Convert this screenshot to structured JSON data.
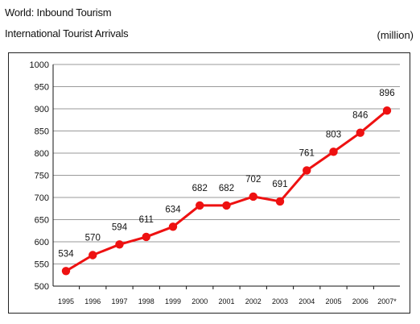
{
  "header": {
    "title": "World: Inbound Tourism",
    "subtitle": "International Tourist Arrivals",
    "unit": "(million)"
  },
  "colors": {
    "series": "#ee1111",
    "grid": "#9a9a9a",
    "axis": "#111111"
  },
  "chart_data": {
    "type": "line",
    "title": "World: Inbound Tourism",
    "subtitle": "International Tourist Arrivals",
    "ylabel": "(million)",
    "xlabel": "",
    "categories": [
      "1995",
      "1996",
      "1997",
      "1998",
      "1999",
      "2000",
      "2001",
      "2002",
      "2003",
      "2004",
      "2005",
      "2006",
      "2007*"
    ],
    "series": [
      {
        "values": [
          534,
          570,
          594,
          611,
          634,
          682,
          682,
          702,
          691,
          761,
          803,
          846,
          896
        ]
      }
    ],
    "ylim": [
      500,
      1000
    ],
    "yticks": [
      500,
      550,
      600,
      650,
      700,
      750,
      800,
      850,
      900,
      950,
      1000
    ],
    "grid": true,
    "legend": "none",
    "data_labels": true
  }
}
